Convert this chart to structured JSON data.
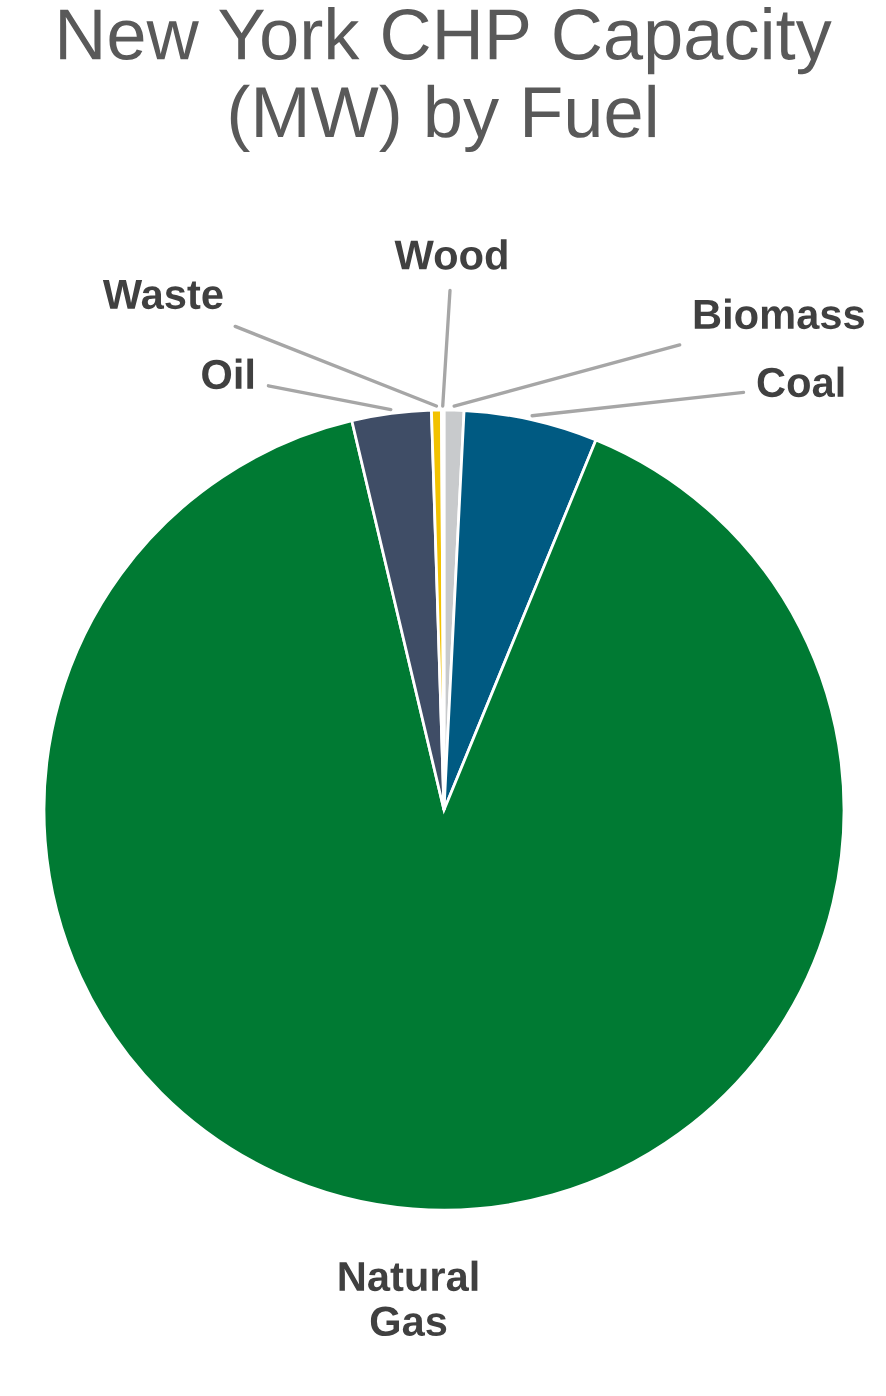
{
  "chart_data": {
    "type": "pie",
    "title": "New York CHP Capacity (MW) by Fuel",
    "categories": [
      "Biomass",
      "Coal",
      "Natural Gas",
      "Oil",
      "Waste",
      "Wood"
    ],
    "values": [
      0.8,
      5.4,
      90.1,
      3.2,
      0.4,
      0.1
    ],
    "colors": [
      "#c8cacc",
      "#005a82",
      "#007a33",
      "#3f4d66",
      "#f2c200",
      "#a0a0a0"
    ],
    "legend": false
  }
}
